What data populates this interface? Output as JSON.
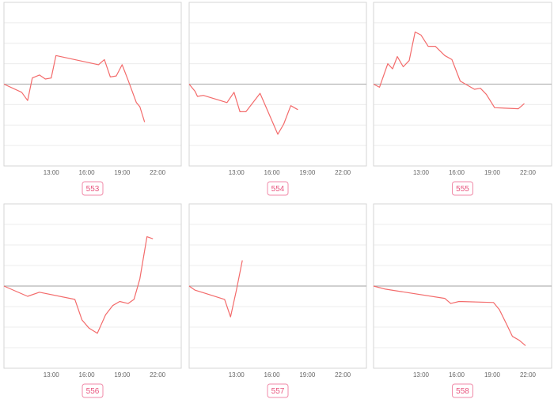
{
  "colors": {
    "line": "#f36b6b",
    "baseline": "#b5b5b5",
    "grid": "#ececec",
    "frame": "#d6d6d6",
    "tick": "#666666",
    "badge": "#e8557f"
  },
  "chart_data": [
    {
      "type": "line",
      "label": "553",
      "xticks": [
        "13:00",
        "16:00",
        "19:00",
        "22:00"
      ],
      "xlim": [
        9,
        24
      ],
      "ylim": [
        -4,
        4
      ],
      "baseline": 0,
      "points": [
        [
          9,
          0
        ],
        [
          10.5,
          -0.4
        ],
        [
          11,
          -0.8
        ],
        [
          11.4,
          0.3
        ],
        [
          12,
          0.45
        ],
        [
          12.5,
          0.25
        ],
        [
          13,
          0.3
        ],
        [
          13.4,
          1.4
        ],
        [
          17,
          0.95
        ],
        [
          17.5,
          1.2
        ],
        [
          18,
          0.35
        ],
        [
          18.5,
          0.4
        ],
        [
          19,
          0.95
        ],
        [
          19.5,
          0.2
        ],
        [
          20.2,
          -0.9
        ],
        [
          20.5,
          -1.1
        ],
        [
          20.9,
          -1.85
        ]
      ]
    },
    {
      "type": "line",
      "label": "554",
      "xticks": [
        "13:00",
        "16:00",
        "19:00",
        "22:00"
      ],
      "xlim": [
        9,
        24
      ],
      "ylim": [
        -4,
        4
      ],
      "baseline": 0,
      "points": [
        [
          9,
          0
        ],
        [
          9.5,
          -0.35
        ],
        [
          9.7,
          -0.6
        ],
        [
          10.2,
          -0.55
        ],
        [
          12.2,
          -0.9
        ],
        [
          12.8,
          -0.4
        ],
        [
          13.3,
          -1.35
        ],
        [
          13.8,
          -1.35
        ],
        [
          15,
          -0.45
        ],
        [
          16.5,
          -2.45
        ],
        [
          17,
          -1.95
        ],
        [
          17.6,
          -1.05
        ],
        [
          18.2,
          -1.25
        ]
      ]
    },
    {
      "type": "line",
      "label": "555",
      "xticks": [
        "13:00",
        "16:00",
        "19:00",
        "22:00"
      ],
      "xlim": [
        9,
        24
      ],
      "ylim": [
        -4,
        4
      ],
      "baseline": 0,
      "points": [
        [
          9,
          0
        ],
        [
          9.5,
          -0.15
        ],
        [
          10.2,
          1.0
        ],
        [
          10.6,
          0.75
        ],
        [
          11,
          1.35
        ],
        [
          11.5,
          0.85
        ],
        [
          12,
          1.15
        ],
        [
          12.5,
          2.55
        ],
        [
          13,
          2.4
        ],
        [
          13.6,
          1.85
        ],
        [
          14.2,
          1.85
        ],
        [
          15,
          1.4
        ],
        [
          15.6,
          1.2
        ],
        [
          16.3,
          0.15
        ],
        [
          17.5,
          -0.25
        ],
        [
          18,
          -0.2
        ],
        [
          18.5,
          -0.5
        ],
        [
          19.2,
          -1.15
        ],
        [
          21.2,
          -1.2
        ],
        [
          21.7,
          -0.95
        ]
      ]
    },
    {
      "type": "line",
      "label": "556",
      "xticks": [
        "13:00",
        "16:00",
        "19:00",
        "22:00"
      ],
      "xlim": [
        9,
        24
      ],
      "ylim": [
        -4,
        4
      ],
      "baseline": 0,
      "points": [
        [
          9,
          0
        ],
        [
          10,
          -0.25
        ],
        [
          11,
          -0.5
        ],
        [
          12,
          -0.3
        ],
        [
          15,
          -0.65
        ],
        [
          15.6,
          -1.65
        ],
        [
          16.2,
          -2.05
        ],
        [
          16.9,
          -2.3
        ],
        [
          17.6,
          -1.4
        ],
        [
          18.2,
          -0.95
        ],
        [
          18.8,
          -0.75
        ],
        [
          19.5,
          -0.85
        ],
        [
          20,
          -0.65
        ],
        [
          20.5,
          0.35
        ],
        [
          21.1,
          2.4
        ],
        [
          21.6,
          2.3
        ]
      ]
    },
    {
      "type": "line",
      "label": "557",
      "xticks": [
        "13:00",
        "16:00",
        "19:00",
        "22:00"
      ],
      "xlim": [
        9,
        24
      ],
      "ylim": [
        -4,
        4
      ],
      "baseline": 0,
      "points": [
        [
          9,
          0
        ],
        [
          9.5,
          -0.2
        ],
        [
          12,
          -0.65
        ],
        [
          12.5,
          -1.5
        ],
        [
          13,
          -0.2
        ],
        [
          13.5,
          1.25
        ]
      ]
    },
    {
      "type": "line",
      "label": "558",
      "xticks": [
        "13:00",
        "16:00",
        "19:00",
        "22:00"
      ],
      "xlim": [
        9,
        24
      ],
      "ylim": [
        -4,
        4
      ],
      "baseline": 0,
      "points": [
        [
          9,
          0
        ],
        [
          10,
          -0.15
        ],
        [
          15,
          -0.6
        ],
        [
          15.5,
          -0.85
        ],
        [
          16.2,
          -0.75
        ],
        [
          19.1,
          -0.8
        ],
        [
          19.6,
          -1.15
        ],
        [
          20.2,
          -1.85
        ],
        [
          20.7,
          -2.45
        ],
        [
          21.3,
          -2.65
        ],
        [
          21.8,
          -2.9
        ]
      ]
    }
  ]
}
